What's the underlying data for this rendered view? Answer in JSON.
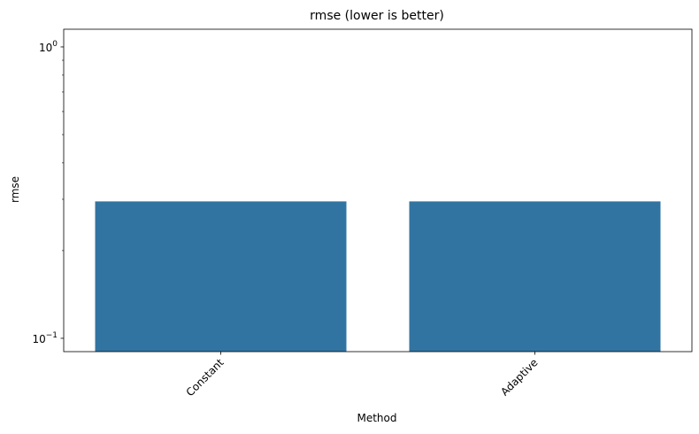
{
  "chart_data": {
    "type": "bar",
    "title": "rmse (lower is better)",
    "xlabel": "Method",
    "ylabel": "rmse",
    "categories": [
      "Constant",
      "Adaptive"
    ],
    "values": [
      0.295,
      0.295
    ],
    "yscale": "log",
    "ylim": [
      0.09,
      1.15
    ],
    "yticks": [
      {
        "value": 1,
        "base": "10",
        "exp": "0"
      },
      {
        "value": 0.1,
        "base": "10",
        "exp": "−1"
      }
    ],
    "xtick_rotation": 45,
    "grid": false,
    "legend": "none",
    "bar_color": "#3274a1"
  }
}
